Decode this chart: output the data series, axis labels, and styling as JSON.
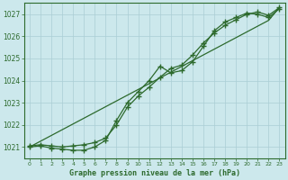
{
  "title": "Graphe pression niveau de la mer (hPa)",
  "xlabel_hours": [
    0,
    1,
    2,
    3,
    4,
    5,
    6,
    7,
    8,
    9,
    10,
    11,
    12,
    13,
    14,
    15,
    16,
    17,
    18,
    19,
    20,
    21,
    22,
    23
  ],
  "ylim": [
    1020.5,
    1027.5
  ],
  "yticks": [
    1021,
    1022,
    1023,
    1024,
    1025,
    1026,
    1027
  ],
  "bg_color": "#cce8ec",
  "line_color": "#2d6a2d",
  "grid_color": "#aacdd4",
  "line_straight": [
    1021.0,
    1021.26,
    1021.52,
    1021.78,
    1022.04,
    1022.3,
    1022.56,
    1022.82,
    1023.08,
    1023.34,
    1023.6,
    1023.86,
    1024.12,
    1024.38,
    1024.64,
    1024.9,
    1025.16,
    1025.42,
    1025.68,
    1025.94,
    1026.2,
    1026.46,
    1026.72,
    1027.3
  ],
  "line_mid": [
    1021.05,
    1021.1,
    1021.05,
    1021.0,
    1021.05,
    1021.1,
    1021.2,
    1021.4,
    1022.0,
    1022.8,
    1023.3,
    1023.7,
    1024.15,
    1024.55,
    1024.7,
    1025.15,
    1025.7,
    1026.15,
    1026.5,
    1026.75,
    1027.0,
    1027.1,
    1026.95,
    1027.3
  ],
  "line_dip": [
    1021.0,
    1021.05,
    1020.95,
    1020.9,
    1020.85,
    1020.85,
    1021.0,
    1021.3,
    1022.2,
    1023.0,
    1023.5,
    1024.0,
    1024.65,
    1024.35,
    1024.45,
    1024.85,
    1025.55,
    1026.25,
    1026.65,
    1026.85,
    1027.05,
    1027.0,
    1026.85,
    1027.25
  ]
}
